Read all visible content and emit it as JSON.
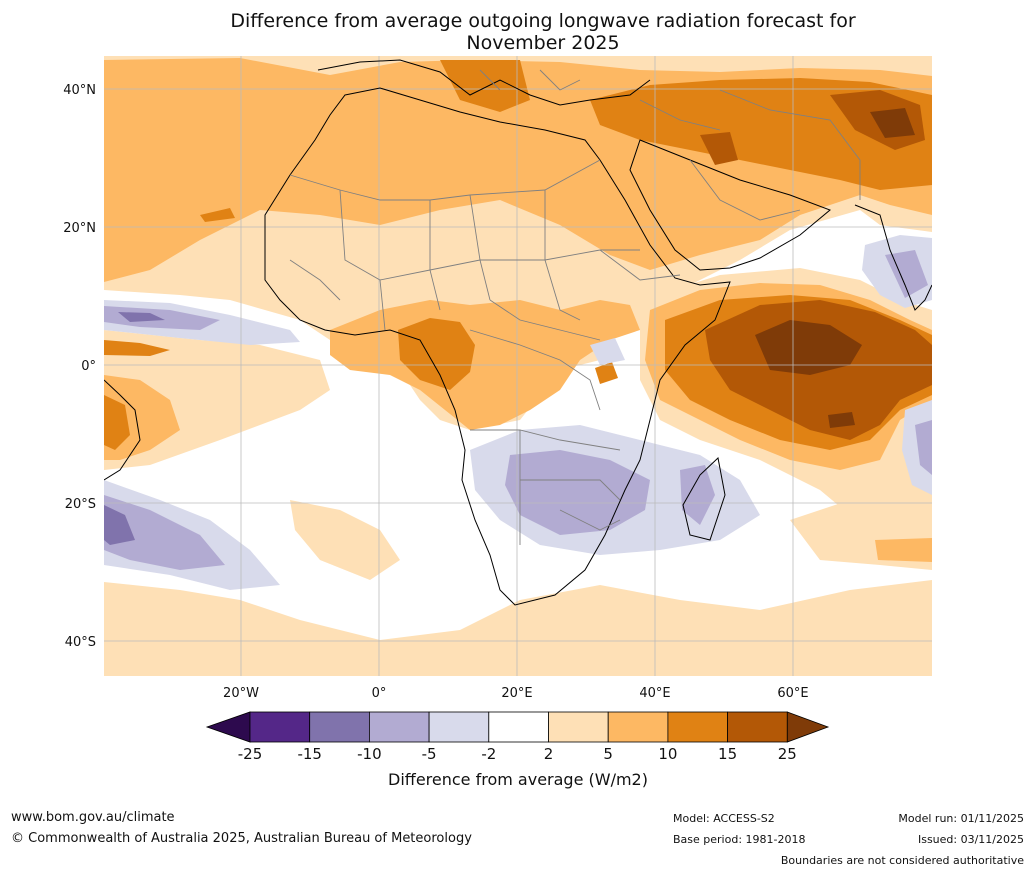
{
  "title": {
    "line1": "Difference from average outgoing longwave radiation forecast for",
    "line2": "November 2025"
  },
  "map": {
    "lat_labels": [
      "40°N",
      "20°N",
      "0°",
      "20°S",
      "40°S"
    ],
    "lon_labels": [
      "20°W",
      "0°",
      "20°E",
      "40°E",
      "60°E"
    ],
    "region": "Africa"
  },
  "legend": {
    "title": "Difference from average (W/m2)",
    "tick_labels": [
      "-25",
      "-15",
      "-10",
      "-5",
      "-2",
      "2",
      "5",
      "10",
      "15",
      "25"
    ],
    "colors": {
      "below_min": "#2d0a4e",
      "n25_n15": "#542788",
      "n15_n10": "#8073ac",
      "n10_n5": "#b2abd2",
      "n5_n2": "#d8daeb",
      "n2_2": "#ffffff",
      "p2_5": "#fee0b6",
      "p5_10": "#fdb863",
      "p10_15": "#e08214",
      "p15_25": "#b35806",
      "above_max": "#7f3b08"
    }
  },
  "footer": {
    "website": "www.bom.gov.au/climate",
    "copyright": "© Commonwealth of Australia 2025, Australian Bureau of Meteorology",
    "model": "Model: ACCESS-S2",
    "base_period": "Base period: 1981-2018",
    "model_run": "Model run: 01/11/2025",
    "issued": "Issued: 03/11/2025",
    "disclaimer": "Boundaries are not considered authoritative"
  }
}
